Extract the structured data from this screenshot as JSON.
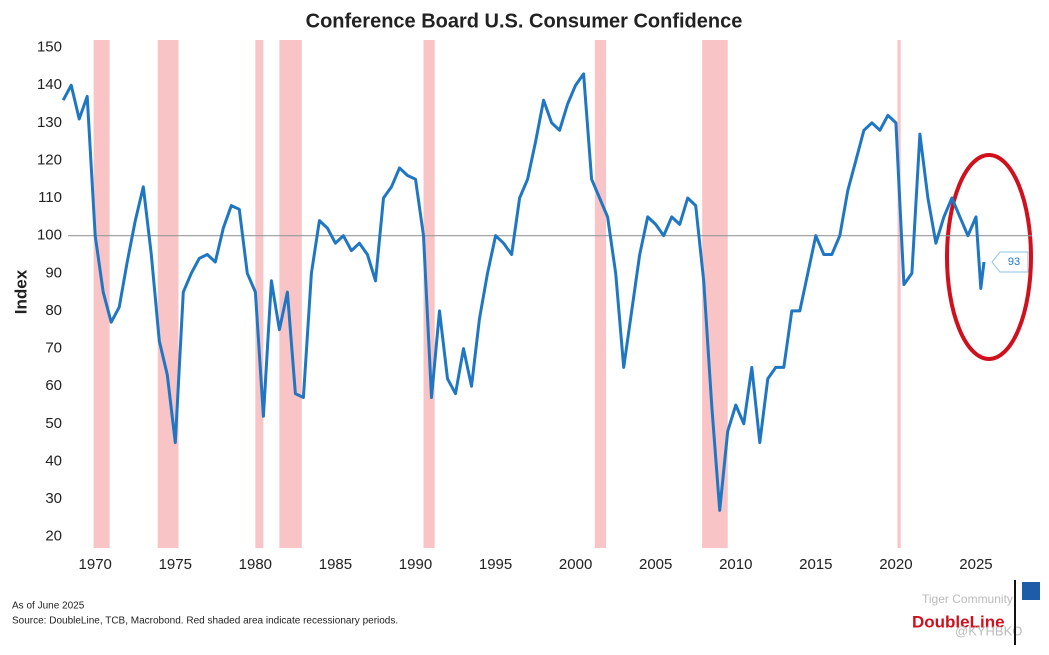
{
  "chart_data": {
    "type": "line",
    "title": "Conference Board U.S. Consumer Confidence",
    "y_label": "Index",
    "x": [
      1968.0,
      1968.5,
      1969.0,
      1969.5,
      1970.0,
      1970.5,
      1971.0,
      1971.5,
      1972.0,
      1972.5,
      1973.0,
      1973.5,
      1974.0,
      1974.5,
      1975.0,
      1975.5,
      1976.0,
      1976.5,
      1977.0,
      1977.5,
      1978.0,
      1978.5,
      1979.0,
      1979.5,
      1980.0,
      1980.5,
      1981.0,
      1981.5,
      1982.0,
      1982.5,
      1983.0,
      1983.5,
      1984.0,
      1984.5,
      1985.0,
      1985.5,
      1986.0,
      1986.5,
      1987.0,
      1987.5,
      1988.0,
      1988.5,
      1989.0,
      1989.5,
      1990.0,
      1990.5,
      1991.0,
      1991.5,
      1992.0,
      1992.5,
      1993.0,
      1993.5,
      1994.0,
      1994.5,
      1995.0,
      1995.5,
      1996.0,
      1996.5,
      1997.0,
      1997.5,
      1998.0,
      1998.5,
      1999.0,
      1999.5,
      2000.0,
      2000.5,
      2001.0,
      2001.5,
      2002.0,
      2002.5,
      2003.0,
      2003.5,
      2004.0,
      2004.5,
      2005.0,
      2005.5,
      2006.0,
      2006.5,
      2007.0,
      2007.5,
      2008.0,
      2008.5,
      2009.0,
      2009.5,
      2010.0,
      2010.5,
      2011.0,
      2011.5,
      2012.0,
      2012.5,
      2013.0,
      2013.5,
      2014.0,
      2014.5,
      2015.0,
      2015.5,
      2016.0,
      2016.5,
      2017.0,
      2017.5,
      2018.0,
      2018.5,
      2019.0,
      2019.5,
      2020.0,
      2020.5,
      2021.0,
      2021.5,
      2022.0,
      2022.5,
      2023.0,
      2023.5,
      2024.0,
      2024.5,
      2025.0,
      2025.3,
      2025.5
    ],
    "series": [
      {
        "name": "Consumer Confidence",
        "color": "#1f77c4",
        "values": [
          136,
          140,
          131,
          137,
          100,
          85,
          77,
          81,
          93,
          104,
          113,
          95,
          72,
          63,
          45,
          85,
          90,
          94,
          95,
          93,
          102,
          108,
          107,
          90,
          85,
          52,
          88,
          75,
          85,
          58,
          57,
          90,
          104,
          102,
          98,
          100,
          96,
          98,
          95,
          88,
          110,
          113,
          118,
          116,
          115,
          100,
          57,
          80,
          62,
          58,
          70,
          60,
          78,
          90,
          100,
          98,
          95,
          110,
          115,
          125,
          136,
          130,
          128,
          135,
          140,
          143,
          115,
          110,
          105,
          90,
          65,
          80,
          95,
          105,
          103,
          100,
          105,
          103,
          110,
          108,
          88,
          55,
          27,
          48,
          55,
          50,
          65,
          45,
          62,
          65,
          65,
          80,
          80,
          90,
          100,
          95,
          95,
          100,
          112,
          120,
          128,
          130,
          128,
          132,
          130,
          87,
          90,
          127,
          110,
          98,
          105,
          110,
          105,
          100,
          105,
          86,
          93
        ]
      }
    ],
    "callout": 93,
    "reference_line": 100,
    "recessions": [
      [
        1969.9,
        1970.9
      ],
      [
        1973.9,
        1975.2
      ],
      [
        1980.0,
        1980.5
      ],
      [
        1981.5,
        1982.9
      ],
      [
        1990.5,
        1991.2
      ],
      [
        2001.2,
        2001.9
      ],
      [
        2007.9,
        2009.5
      ],
      [
        2020.1,
        2020.3
      ]
    ],
    "recession_color": "#f9c4c6",
    "xlim": [
      1968.3,
      2028.5
    ],
    "xticks": [
      1970,
      1975,
      1980,
      1985,
      1990,
      1995,
      2000,
      2005,
      2010,
      2015,
      2020,
      2025
    ],
    "ylim": [
      17,
      152
    ],
    "yticks": [
      20,
      30,
      40,
      50,
      60,
      70,
      80,
      90,
      100,
      110,
      120,
      130,
      140,
      150
    ],
    "notes": [
      "As of June 2025",
      "Source: DoubleLine, TCB, Macrobond. Red shaded area indicate recessionary periods."
    ],
    "brand": "DoubleLine",
    "watermark": [
      "Tiger Community",
      "@KYHBKO"
    ]
  }
}
